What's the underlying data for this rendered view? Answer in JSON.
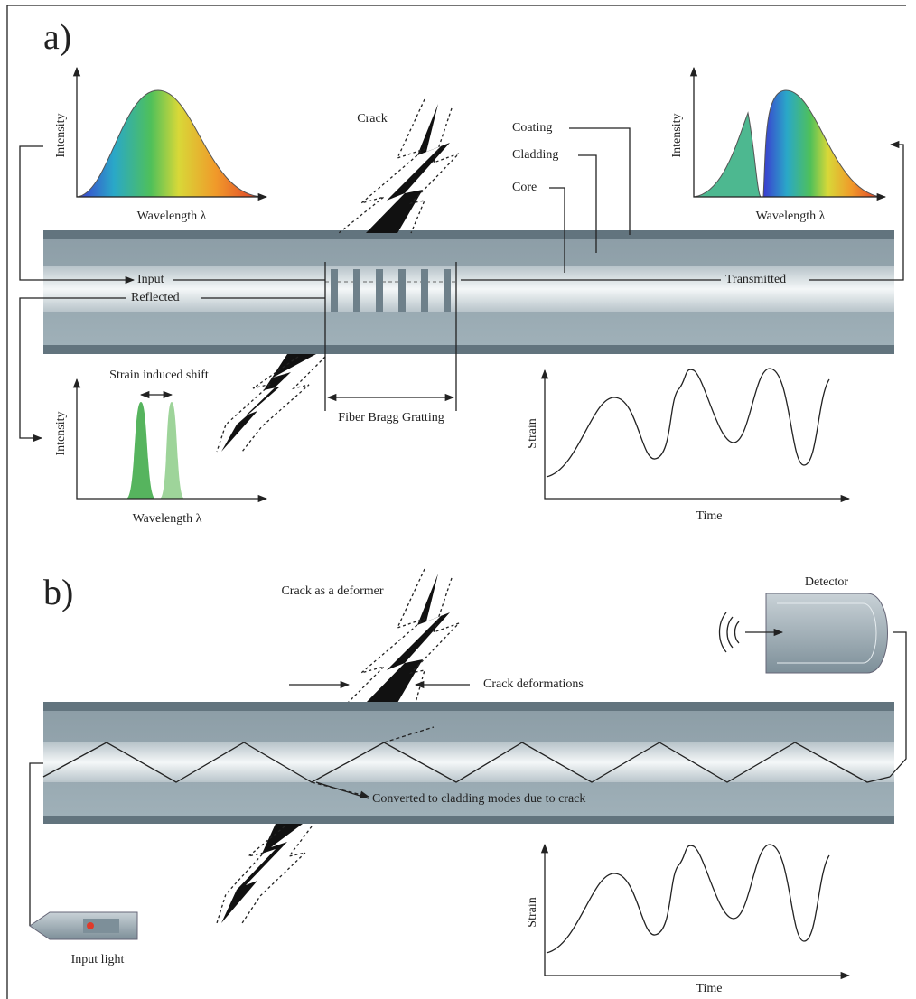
{
  "panel_a": {
    "label": "a)",
    "input_spectrum": {
      "y_axis": "Intensity",
      "x_axis": "Wavelength λ"
    },
    "transmitted_spectrum": {
      "y_axis": "Intensity",
      "x_axis": "Wavelength λ"
    },
    "reflected_spectrum": {
      "y_axis": "Intensity",
      "x_axis": "Wavelength λ",
      "annotation": "Strain induced shift"
    },
    "crack": "Crack",
    "fiber_layers": [
      "Coating",
      "Cladding",
      "Core"
    ],
    "signals": [
      "Input",
      "Reflected",
      "Transmitted"
    ],
    "grating": "Fiber Bragg Gratting",
    "strain_plot": {
      "y_axis": "Strain",
      "x_axis": "Time"
    }
  },
  "panel_b": {
    "label": "b)",
    "crack": "Crack as a deformer",
    "deformations": "Crack deformations",
    "cladding_modes": "Converted to cladding modes due to crack",
    "detector": "Detector",
    "source": "Input light",
    "strain_plot": {
      "y_axis": "Strain",
      "x_axis": "Time"
    }
  }
}
